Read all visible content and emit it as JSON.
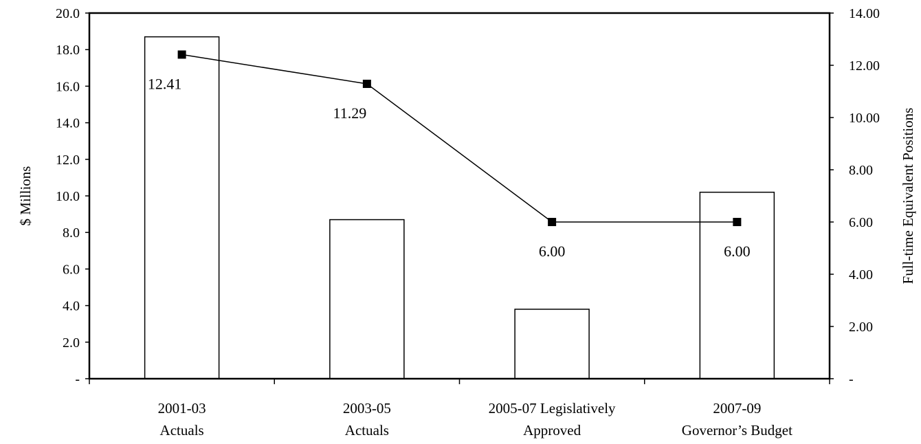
{
  "chart_data": {
    "type": "bar",
    "categories": [
      [
        "2001-03",
        "Actuals"
      ],
      [
        "2003-05",
        "Actuals"
      ],
      [
        "2005-07 Legislatively",
        "Approved"
      ],
      [
        "2007-09",
        "Governor’s Budget"
      ]
    ],
    "series": [
      {
        "type": "bar",
        "axis": "left",
        "values": [
          18.7,
          8.7,
          3.8,
          10.2
        ]
      },
      {
        "type": "line",
        "axis": "right",
        "values": [
          12.41,
          11.29,
          6.0,
          6.0
        ],
        "data_labels": [
          "12.41",
          "11.29",
          "6.00",
          "6.00"
        ]
      }
    ],
    "ylabel_left": "$ Millions",
    "ylabel_right": "Full-time Equivalent Positions",
    "ylim_left": [
      0,
      20
    ],
    "ylim_right": [
      0,
      14
    ],
    "yticks_left": [
      "-",
      "2.0",
      "4.0",
      "6.0",
      "8.0",
      "10.0",
      "12.0",
      "14.0",
      "16.0",
      "18.0",
      "20.0"
    ],
    "yticks_right": [
      "-",
      "2.00",
      "4.00",
      "6.00",
      "8.00",
      "10.00",
      "12.00",
      "14.00"
    ],
    "grid": false,
    "legend": "none",
    "colors": {
      "bar_fill": "#ffffff",
      "bar_stroke": "#000000",
      "line": "#000000",
      "marker": "#000000"
    }
  }
}
